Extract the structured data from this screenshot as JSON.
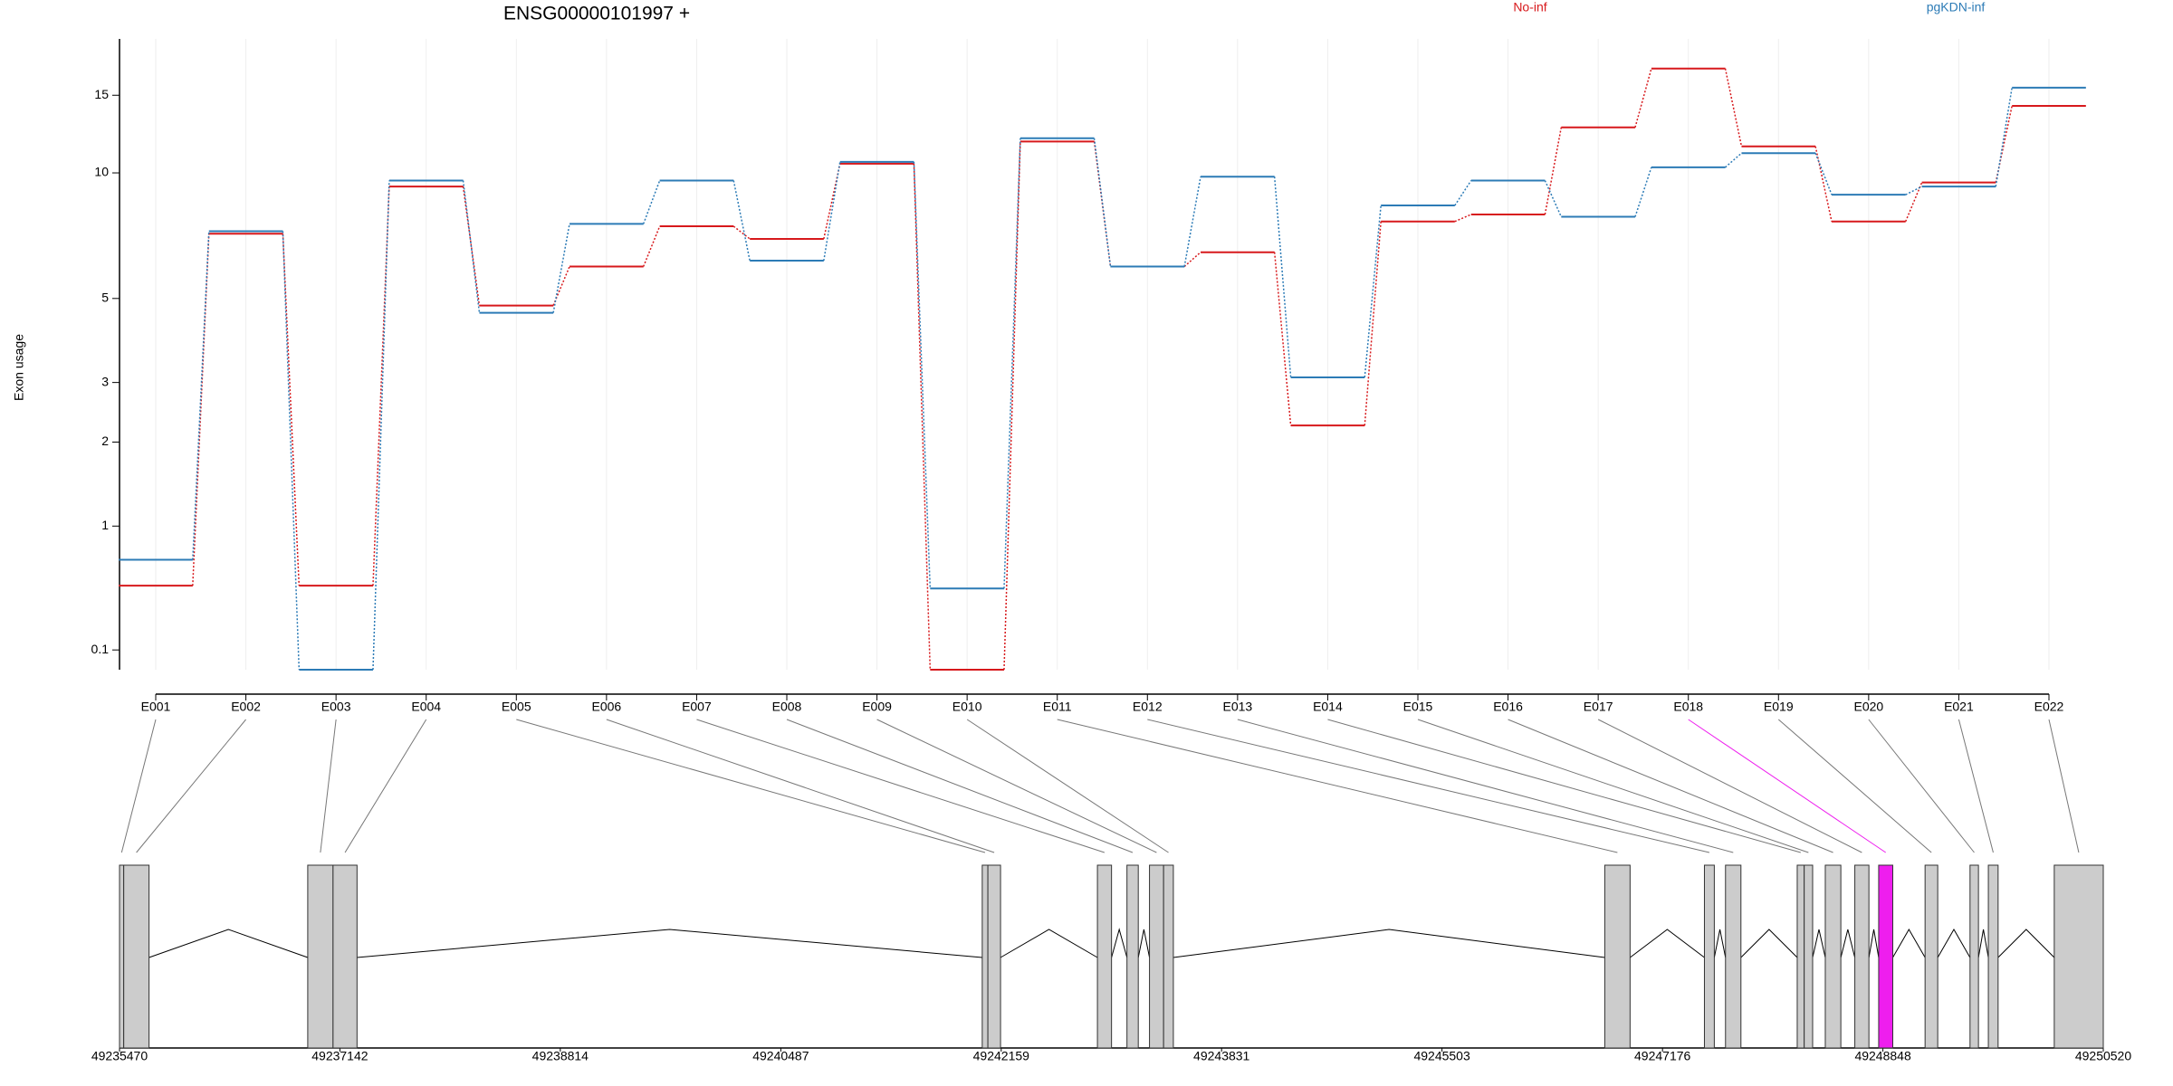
{
  "chart_data": {
    "type": "line",
    "title": "ENSG00000101997 +",
    "y_label": "Exon usage",
    "yscale": "log(x+1)",
    "ylim": [
      0,
      20
    ],
    "yticks": [
      0.1,
      1,
      2,
      3,
      5,
      10,
      15
    ],
    "grid": true,
    "categories": [
      "E001",
      "E002",
      "E003",
      "E004",
      "E005",
      "E006",
      "E007",
      "E008",
      "E009",
      "E010",
      "E011",
      "E012",
      "E013",
      "E014",
      "E015",
      "E016",
      "E017",
      "E018",
      "E019",
      "E020",
      "E021",
      "E022"
    ],
    "series": [
      {
        "name": "No-inf",
        "color": "#d7191c",
        "values": [
          0.5,
          7.2,
          0.5,
          9.3,
          4.8,
          6.0,
          7.5,
          7.0,
          10.5,
          0,
          11.8,
          6.0,
          6.5,
          2.25,
          7.7,
          8.0,
          12.7,
          17.2,
          11.5,
          7.7,
          9.5,
          14.2
        ]
      },
      {
        "name": "pgKDN-inf",
        "color": "#2c7bb6",
        "values": [
          0.7,
          7.3,
          0,
          9.6,
          4.6,
          7.6,
          9.6,
          6.2,
          10.6,
          0.48,
          12.0,
          6.0,
          9.8,
          3.1,
          8.4,
          9.6,
          7.9,
          10.3,
          11.1,
          8.9,
          9.3,
          15.6
        ]
      }
    ]
  },
  "gene_model": {
    "xlim": [
      49235470,
      49250520
    ],
    "xticks": [
      49235470,
      49237142,
      49238814,
      49240487,
      49242159,
      49243831,
      49245503,
      49247176,
      49248848,
      49250520
    ],
    "exons": [
      [
        49235470,
        49235502
      ],
      [
        49235502,
        49235694
      ],
      [
        49236898,
        49237090
      ],
      [
        49237090,
        49237272
      ],
      [
        49242015,
        49242058
      ],
      [
        49242058,
        49242154
      ],
      [
        49242889,
        49242996
      ],
      [
        49243113,
        49243199
      ],
      [
        49243284,
        49243391
      ],
      [
        49243391,
        49243465
      ],
      [
        49246738,
        49246930
      ],
      [
        49247494,
        49247569
      ],
      [
        49247654,
        49247771
      ],
      [
        49248198,
        49248251
      ],
      [
        49248251,
        49248315
      ],
      [
        49248411,
        49248529
      ],
      [
        49248635,
        49248742
      ],
      [
        49248816,
        49248923
      ],
      [
        49249168,
        49249264
      ],
      [
        49249509,
        49249573
      ],
      [
        49249648,
        49249722
      ],
      [
        49250148,
        49250520
      ]
    ],
    "exon_color": "#cccccc",
    "highlight": "E018",
    "highlight_color": "#ee1eee"
  }
}
